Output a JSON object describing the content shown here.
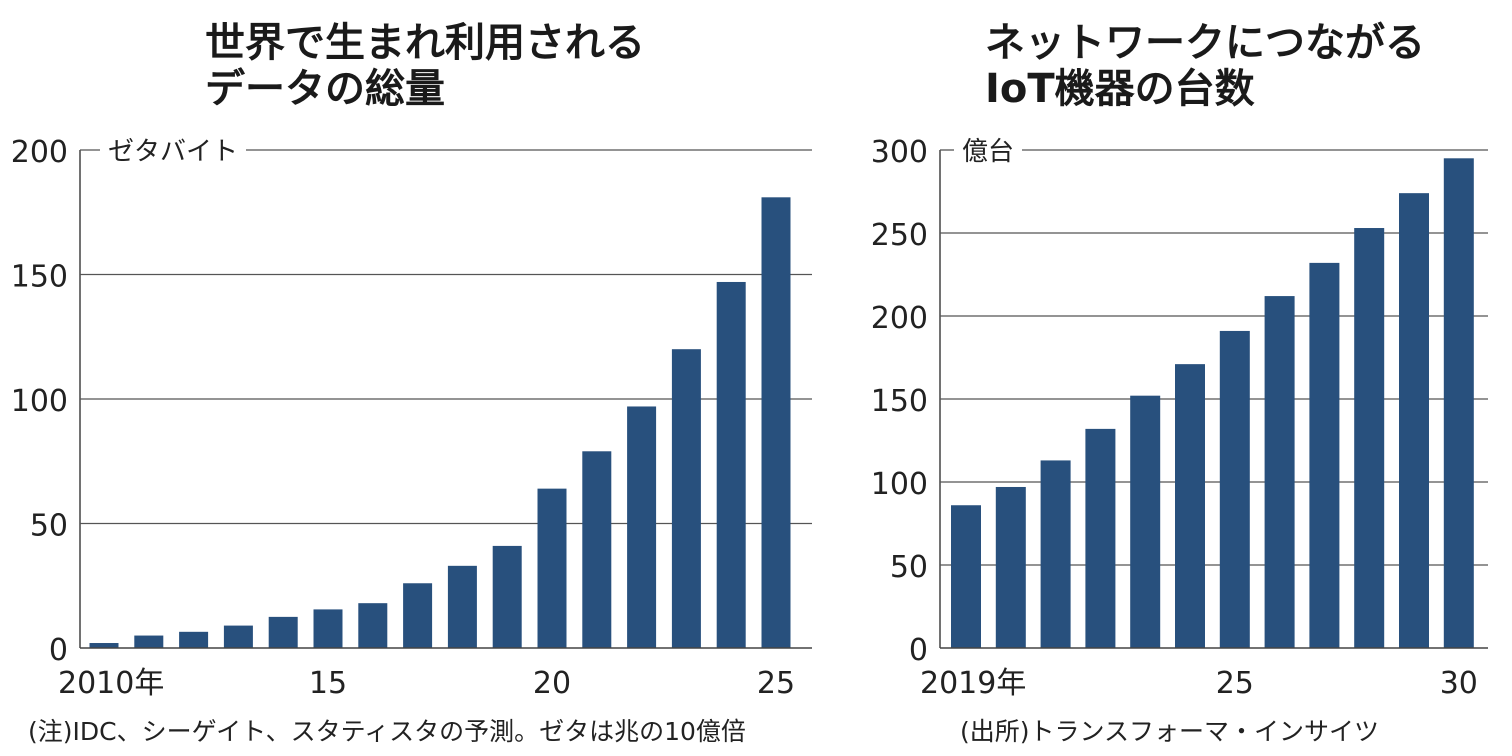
{
  "chart_data": [
    {
      "type": "bar",
      "title_lines": [
        "世界で生まれ利用される",
        "データの総量"
      ],
      "unit_label": "ゼタバイト",
      "ylim": [
        0,
        200
      ],
      "yticks": [
        "0",
        "50",
        "100",
        "150",
        "200"
      ],
      "x_tick_labels": [
        "2010年",
        "15",
        "20",
        "25"
      ],
      "categories": [
        "2010",
        "2011",
        "2012",
        "2013",
        "2014",
        "2015",
        "2016",
        "2017",
        "2018",
        "2019",
        "2020",
        "2021",
        "2022",
        "2023",
        "2024",
        "2025"
      ],
      "values": [
        2,
        5,
        6.5,
        9,
        12.5,
        15.5,
        18,
        26,
        33,
        41,
        64,
        79,
        97,
        120,
        147,
        181
      ],
      "bar_color": "#28507d",
      "grid": true,
      "source": "(注)IDC、シーゲイト、スタティスタの予測。ゼタは兆の10億倍"
    },
    {
      "type": "bar",
      "title_lines": [
        "ネットワークにつながる",
        "IoT機器の台数"
      ],
      "unit_label": "億台",
      "ylim": [
        0,
        300
      ],
      "yticks": [
        "0",
        "50",
        "100",
        "150",
        "200",
        "250",
        "300"
      ],
      "x_tick_labels": [
        "2019年",
        "25",
        "30"
      ],
      "categories": [
        "2019",
        "2020",
        "2021",
        "2022",
        "2023",
        "2024",
        "2025",
        "2026",
        "2027",
        "2028",
        "2029",
        "2030"
      ],
      "values": [
        86,
        97,
        113,
        132,
        152,
        171,
        191,
        212,
        232,
        253,
        274,
        295
      ],
      "bar_color": "#28507d",
      "grid": true,
      "source": "(出所)トランスフォーマ・インサイツ"
    }
  ]
}
